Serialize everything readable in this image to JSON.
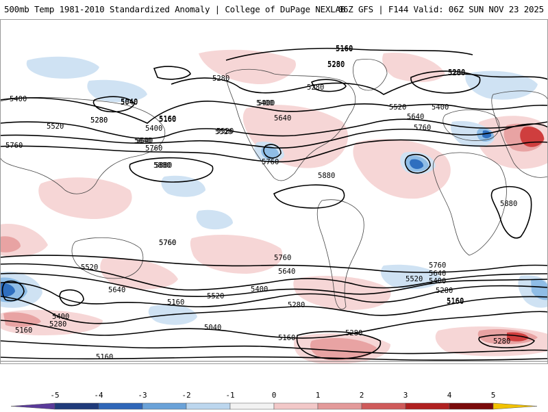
{
  "header": {
    "title_left": "500mb Temp 1981-2010 Standardized Anomaly | College of DuPage NEXLAB",
    "title_right": "06Z GFS | F144 Valid: 06Z SUN NOV 23 2025"
  },
  "colorbar": {
    "ticks": [
      "-5",
      "-4",
      "-3",
      "-2",
      "-1",
      "0",
      "1",
      "2",
      "3",
      "4",
      "5"
    ],
    "colors": [
      "#5a3a9a",
      "#1f3a7a",
      "#2f66b8",
      "#6aa2d8",
      "#bcd6ee",
      "#f2f2f2",
      "#f2c8c8",
      "#e39a9a",
      "#cf5a5a",
      "#b02020",
      "#7a0a0a",
      "#f2c200"
    ]
  },
  "contours": {
    "labels": [
      "5160",
      "5280",
      "5280",
      "5280",
      "5400",
      "5520",
      "5640",
      "5760",
      "5880",
      "5040",
      "5160",
      "5400",
      "5520",
      "5640",
      "5760",
      "5880",
      "5400",
      "5280",
      "5280",
      "5160",
      "5040",
      "5160",
      "5280",
      "5400",
      "5520",
      "5640",
      "5760",
      "5760",
      "5640",
      "5520",
      "5400",
      "5280",
      "5160",
      "5280",
      "5880",
      "5400",
      "5280",
      "5160",
      "5640",
      "5520",
      "5760",
      "5880",
      "5760",
      "5520",
      "5640",
      "5400",
      "5160",
      "5280"
    ]
  },
  "anomaly_colors": {
    "warm_light": "#f6d6d6",
    "warm_mid": "#e8a3a3",
    "warm_strong": "#cf3e3e",
    "cold_light": "#cfe2f3",
    "cold_mid": "#8fbde6",
    "cold_strong": "#2f6fbf"
  }
}
